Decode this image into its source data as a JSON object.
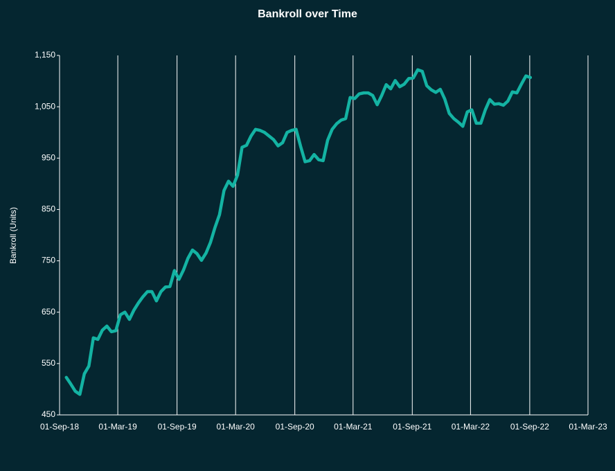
{
  "chart_data": {
    "type": "line",
    "title": "Bankroll over Time",
    "ylabel": "Bankroll  (Units)",
    "x": [
      "2018-09-22",
      "2018-10-06",
      "2018-10-20",
      "2018-11-03",
      "2018-11-17",
      "2018-12-01",
      "2018-12-15",
      "2018-12-29",
      "2019-01-12",
      "2019-01-26",
      "2019-02-09",
      "2019-02-23",
      "2019-03-09",
      "2019-03-23",
      "2019-04-06",
      "2019-04-20",
      "2019-05-04",
      "2019-05-18",
      "2019-06-01",
      "2019-06-15",
      "2019-06-29",
      "2019-07-13",
      "2019-07-27",
      "2019-08-10",
      "2019-08-24",
      "2019-09-07",
      "2019-09-21",
      "2019-10-05",
      "2019-10-19",
      "2019-11-02",
      "2019-11-16",
      "2019-11-30",
      "2019-12-14",
      "2019-12-28",
      "2020-01-11",
      "2020-01-25",
      "2020-02-08",
      "2020-02-22",
      "2020-03-07",
      "2020-03-21",
      "2020-04-04",
      "2020-04-18",
      "2020-05-02",
      "2020-05-16",
      "2020-05-30",
      "2020-06-13",
      "2020-06-27",
      "2020-07-11",
      "2020-07-25",
      "2020-08-08",
      "2020-08-22",
      "2020-09-05",
      "2020-09-19",
      "2020-10-03",
      "2020-10-17",
      "2020-10-31",
      "2020-11-14",
      "2020-11-28",
      "2020-12-12",
      "2020-12-26",
      "2021-01-09",
      "2021-01-23",
      "2021-02-06",
      "2021-02-20",
      "2021-03-06",
      "2021-03-20",
      "2021-04-03",
      "2021-04-17",
      "2021-05-01",
      "2021-05-15",
      "2021-05-29",
      "2021-06-12",
      "2021-06-26",
      "2021-07-10",
      "2021-07-24",
      "2021-08-07",
      "2021-08-21",
      "2021-09-04",
      "2021-09-18",
      "2021-10-02",
      "2021-10-16",
      "2021-10-30",
      "2021-11-13",
      "2021-11-27",
      "2021-12-11",
      "2021-12-25",
      "2022-01-08",
      "2022-01-22",
      "2022-02-05",
      "2022-02-19",
      "2022-03-05",
      "2022-03-19",
      "2022-04-02",
      "2022-04-16",
      "2022-04-30",
      "2022-05-14",
      "2022-05-28",
      "2022-06-11",
      "2022-06-25",
      "2022-07-09",
      "2022-07-23",
      "2022-08-06",
      "2022-08-20",
      "2022-09-03"
    ],
    "series": [
      {
        "name": "Bankroll",
        "color": "#14b3a3",
        "values": [
          523,
          510,
          496,
          490,
          530,
          545,
          600,
          597,
          615,
          623,
          612,
          614,
          645,
          650,
          636,
          654,
          668,
          680,
          690,
          690,
          672,
          690,
          699,
          700,
          731,
          714,
          732,
          755,
          771,
          764,
          751,
          765,
          786,
          815,
          840,
          887,
          905,
          895,
          917,
          971,
          975,
          993,
          1006,
          1004,
          1000,
          993,
          986,
          974,
          980,
          1000,
          1004,
          1006,
          973,
          943,
          945,
          957,
          947,
          945,
          985,
          1006,
          1017,
          1024,
          1027,
          1068,
          1066,
          1075,
          1077,
          1077,
          1072,
          1054,
          1072,
          1093,
          1085,
          1101,
          1089,
          1094,
          1105,
          1106,
          1122,
          1119,
          1091,
          1083,
          1078,
          1084,
          1065,
          1037,
          1027,
          1020,
          1012,
          1040,
          1044,
          1018,
          1018,
          1044,
          1064,
          1055,
          1056,
          1053,
          1061,
          1079,
          1077,
          1094,
          1110,
          1107
        ]
      }
    ],
    "xlim": [
      "2018-09-01",
      "2023-03-01"
    ],
    "xticks": [
      {
        "value": "2018-09-01",
        "label": "01-Sep-18"
      },
      {
        "value": "2019-03-01",
        "label": "01-Mar-19"
      },
      {
        "value": "2019-09-01",
        "label": "01-Sep-19"
      },
      {
        "value": "2020-03-01",
        "label": "01-Mar-20"
      },
      {
        "value": "2020-09-01",
        "label": "01-Sep-20"
      },
      {
        "value": "2021-03-01",
        "label": "01-Mar-21"
      },
      {
        "value": "2021-09-01",
        "label": "01-Sep-21"
      },
      {
        "value": "2022-03-01",
        "label": "01-Mar-22"
      },
      {
        "value": "2022-09-01",
        "label": "01-Sep-22"
      },
      {
        "value": "2023-03-01",
        "label": "01-Mar-23"
      }
    ],
    "ylim": [
      450,
      1150
    ],
    "yticks": [
      450,
      550,
      650,
      750,
      850,
      950,
      {
        "value": 1050,
        "label": "1,050"
      },
      {
        "value": 1150,
        "label": "1,150"
      }
    ],
    "grid": "x"
  }
}
